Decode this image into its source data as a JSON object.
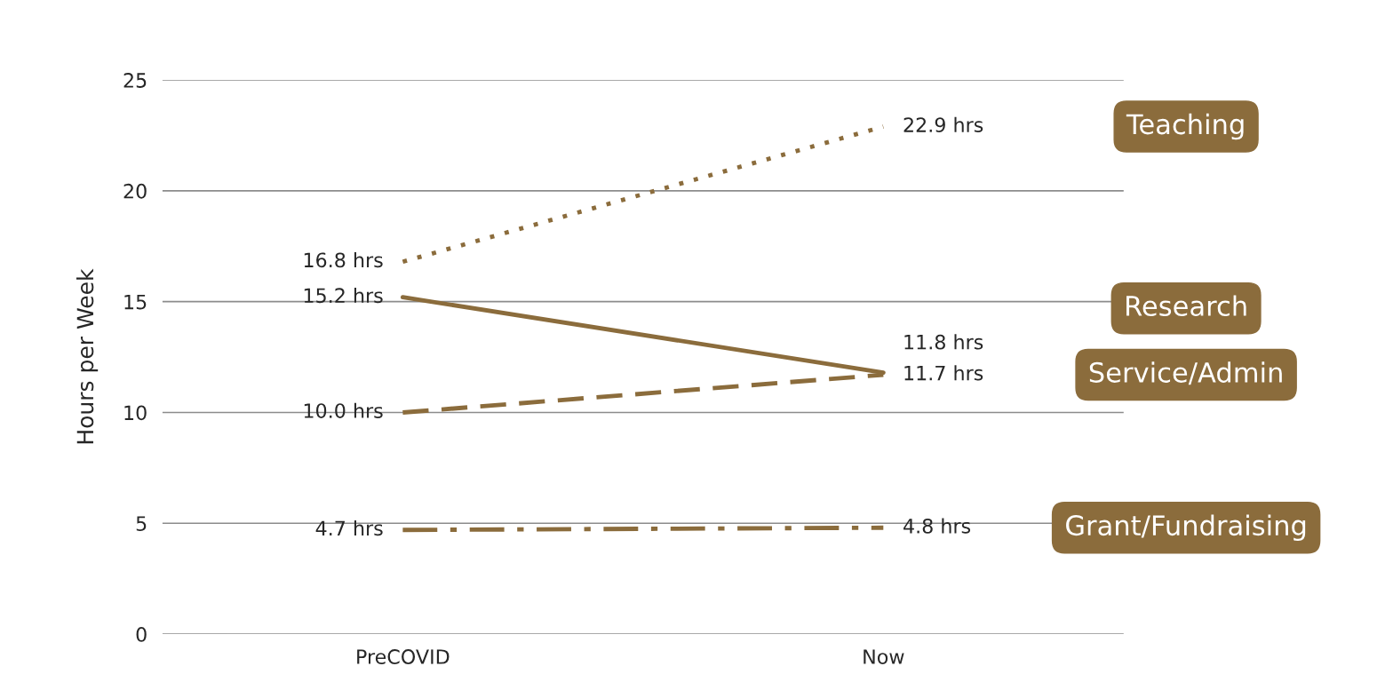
{
  "chart_data": {
    "type": "line",
    "ylabel": "Hours per Week",
    "categories": [
      "PreCOVID",
      "Now"
    ],
    "ylim": [
      0,
      25
    ],
    "yticks": [
      0,
      5,
      10,
      15,
      20,
      25
    ],
    "grid": "y",
    "marker": "none",
    "series": [
      {
        "name": "Teaching",
        "color": "#8b6c3c",
        "values": [
          16.8,
          22.9
        ],
        "line_style": "dotted",
        "value_labels": [
          "16.8 hrs",
          "22.9 hrs"
        ]
      },
      {
        "name": "Research",
        "color": "#8b6c3c",
        "values": [
          15.2,
          11.8
        ],
        "line_style": "solid",
        "value_labels": [
          "15.2 hrs",
          "11.8 hrs"
        ]
      },
      {
        "name": "Service/Admin",
        "color": "#8b6c3c",
        "values": [
          10.0,
          11.7
        ],
        "line_style": "dashed",
        "value_labels": [
          "10.0 hrs",
          "11.7 hrs"
        ]
      },
      {
        "name": "Grant/Fundraising",
        "color": "#8b6c3c",
        "values": [
          4.7,
          4.8
        ],
        "line_style": "dashdot",
        "value_labels": [
          "4.7 hrs",
          "4.8 hrs"
        ]
      }
    ]
  }
}
